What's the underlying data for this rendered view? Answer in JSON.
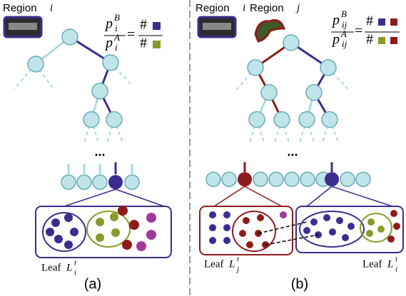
{
  "panels": [
    {
      "caption": "(a)",
      "regions": [
        {
          "label": "Region",
          "var": "i"
        }
      ],
      "formula": {
        "symbol": "p",
        "num_sup": "B",
        "den_sup": "A",
        "sub": "i",
        "equals": "=",
        "hash": "#"
      },
      "ellipsis": "...",
      "leaves": [
        {
          "label": "Leaf",
          "var": "L",
          "sup": "t",
          "sub": "i"
        }
      ]
    },
    {
      "caption": "(b)",
      "regions": [
        {
          "label": "Region",
          "var": "i"
        },
        {
          "label": "Region",
          "var": "j"
        }
      ],
      "formula": {
        "symbol": "p",
        "num_sup": "B",
        "den_sup": "A",
        "sub": "ij",
        "equals": "=",
        "hash": "#"
      },
      "ellipsis": "...",
      "leaves": [
        {
          "label": "Leaf",
          "var": "L",
          "sup": "t",
          "sub": "j"
        },
        {
          "label": "Leaf",
          "var": "L",
          "sup": "t",
          "sub": "i"
        }
      ]
    }
  ]
}
